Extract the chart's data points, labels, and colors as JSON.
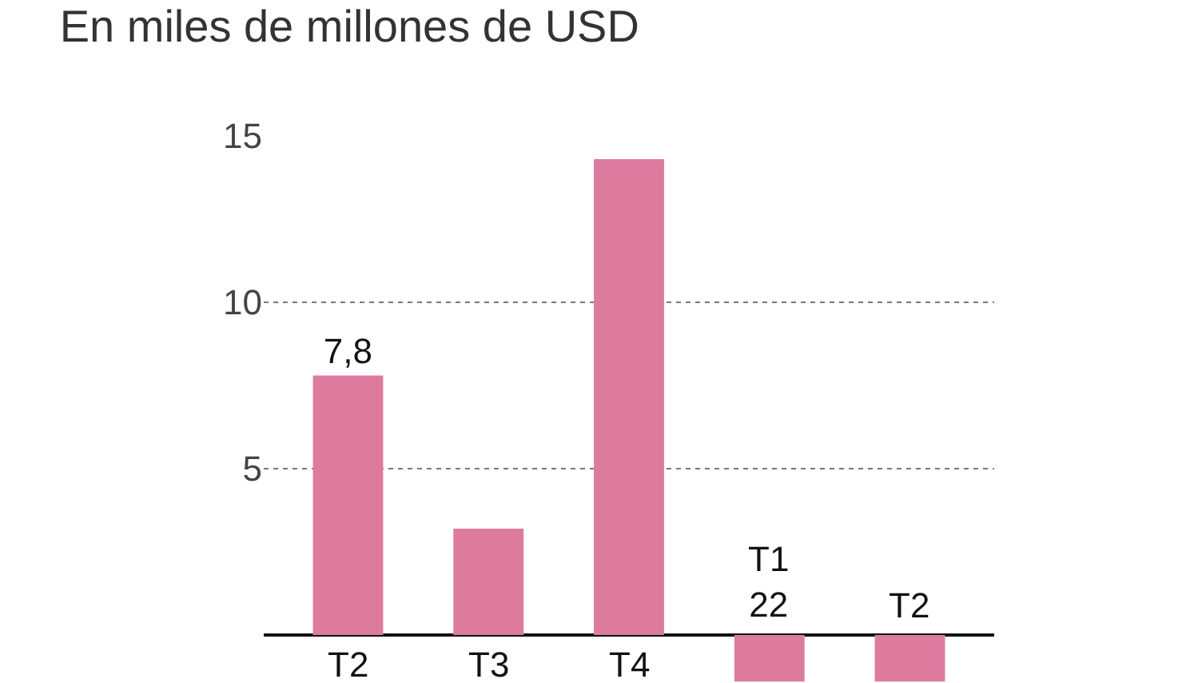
{
  "chart_data": {
    "type": "bar",
    "title": "En miles de millones de USD",
    "categories": [
      "T2",
      "T3",
      "T4",
      "T1\n22",
      "T2"
    ],
    "values": [
      7.8,
      3.2,
      14.3,
      -1.4,
      -1.4
    ],
    "value_labels": [
      "7,8",
      null,
      null,
      null,
      null
    ],
    "color": "#dd7b9f",
    "ylim": [
      -1.44,
      15
    ],
    "yticks": [
      5,
      10,
      15
    ],
    "grid": "y"
  }
}
